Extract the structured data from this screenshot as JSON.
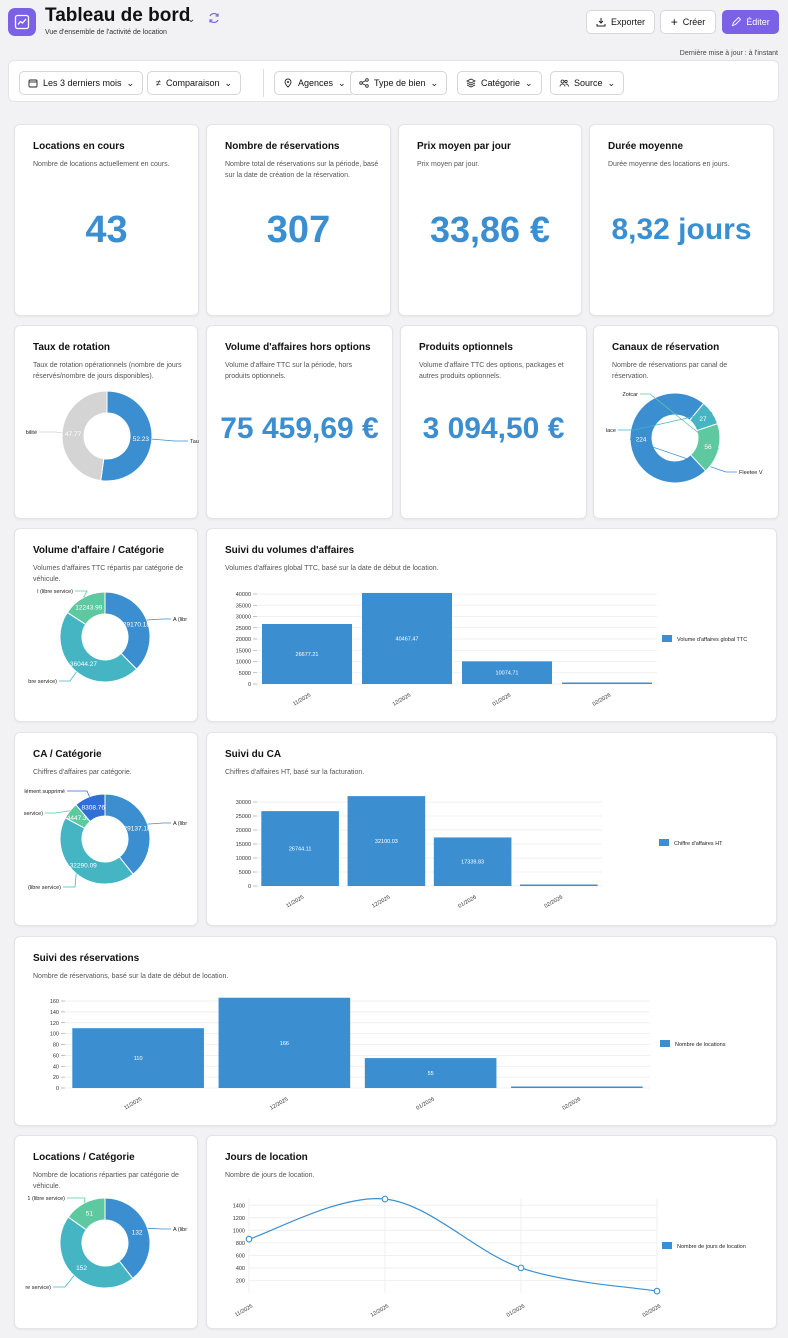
{
  "header": {
    "title": "Tableau de bord",
    "subtitle": "Vue d'ensemble de l'activité de location",
    "export_label": "Exporter",
    "create_label": "Créer",
    "edit_label": "Éditer",
    "updated": "Dernière mise à jour : à l'instant"
  },
  "filters": {
    "period": "Les 3 derniers mois",
    "comparison": "Comparaison",
    "agencies": "Agences",
    "property_type": "Type de bien",
    "category": "Catégorie",
    "source": "Source"
  },
  "kpis": {
    "locations_en_cours": {
      "title": "Locations en cours",
      "desc": "Nombre de locations actuellement en cours.",
      "value": "43"
    },
    "nb_reservations": {
      "title": "Nombre de réservations",
      "desc": "Nombre total de réservations sur la période, basé sur la date de création de la réservation.",
      "value": "307"
    },
    "prix_moyen": {
      "title": "Prix moyen par jour",
      "desc": "Prix moyen par jour.",
      "value": "33,86 €"
    },
    "duree_moyenne": {
      "title": "Durée moyenne",
      "desc": "Durée moyenne des locations en jours.",
      "value": "8,32 jours"
    },
    "volume_hors_options": {
      "title": "Volume d'affaires hors options",
      "desc": "Volume d'affaire TTC sur la période, hors produits optionnels.",
      "value": "75 459,69 €"
    },
    "produits_optionnels": {
      "title": "Produits optionnels",
      "desc": "Volume d'affaire TTC des options, packages et autres produits optionnels.",
      "value": "3 094,50 €"
    }
  },
  "colors": {
    "blue": "#3b8fd0",
    "teal": "#45b5c4",
    "green": "#5ec8a0",
    "grey": "#d4d4d4",
    "darkblue": "#2f6fd6",
    "accent": "#7b61e5"
  },
  "donuts": {
    "rotation": {
      "title": "Taux de rotation",
      "desc": "Taux de rotation opérationnels (nombre de jours réservés/nombre de jours disponibles).",
      "values": [
        52.23,
        47.77
      ],
      "labels": [
        "52.23",
        "47.77"
      ],
      "names": [
        "Taux",
        "bilité"
      ],
      "colors": [
        "#3b8fd0",
        "#d4d4d4"
      ]
    },
    "canaux": {
      "title": "Canaux de réservation",
      "desc": "Nombre de réservations par canal de réservation.",
      "values": [
        224,
        27,
        56
      ],
      "labels": [
        "224",
        "27",
        "56"
      ],
      "names": [
        "Fleetee V",
        "lace",
        "Zotcar"
      ],
      "colors": [
        "#3b8fd0",
        "#45b5c4",
        "#5ec8a0"
      ]
    },
    "volume_categorie": {
      "title": "Volume d'affaire / Catégorie",
      "desc": "Volumes d'affaires TTC répartis par catégorie de véhicule.",
      "values": [
        29170.18,
        36044.27,
        12243.99
      ],
      "labels": [
        "29170.18",
        "36044.27",
        "12243.99"
      ],
      "names": [
        "A (libr",
        "bre service)",
        "l (libre service)"
      ],
      "colors": [
        "#3b8fd0",
        "#45b5c4",
        "#5ec8a0"
      ]
    },
    "ca_categorie": {
      "title": "CA / Catégorie",
      "desc": "Chiffres d'affaires par catégorie.",
      "values": [
        29137.18,
        32290.09,
        4447.31,
        8308.76
      ],
      "labels": [
        "29137.18",
        "32290.09",
        "4447.31",
        "8308.76"
      ],
      "names": [
        "A (libr",
        "(libre service)",
        "service)",
        "lément supprimé"
      ],
      "colors": [
        "#3b8fd0",
        "#45b5c4",
        "#5ec8a0",
        "#2f6fd6"
      ]
    },
    "locations_categorie": {
      "title": "Locations / Catégorie",
      "desc": "Nombre de locations réparties par catégorie de véhicule.",
      "values": [
        132,
        152,
        51
      ],
      "labels": [
        "132",
        "152",
        "51"
      ],
      "names": [
        "A (libr",
        "re service)",
        "1 (libre service)"
      ],
      "colors": [
        "#3b8fd0",
        "#45b5c4",
        "#5ec8a0"
      ]
    }
  },
  "chart_data": [
    {
      "type": "bar",
      "title": "Suivi du volumes d'affaires",
      "subtitle": "Volumes d'affaires global TTC, basé sur la date de début de location.",
      "categories": [
        "11/2025",
        "12/2025",
        "01/2026",
        "02/2026"
      ],
      "series": [
        {
          "name": "Volume d'affaires global TTC",
          "values": [
            26677.21,
            40467.47,
            10074.71,
            0
          ]
        }
      ],
      "value_labels": [
        "26677.21",
        "40467.47",
        "10074.71",
        ""
      ],
      "yticks": [
        "40000",
        "35000",
        "30000",
        "25000",
        "20000",
        "15000",
        "10000",
        "5000",
        "0"
      ],
      "ylim": [
        0,
        40000
      ]
    },
    {
      "type": "bar",
      "title": "Suivi du CA",
      "subtitle": "Chiffres d'affaires HT, basé sur la facturation.",
      "categories": [
        "11/2025",
        "12/2025",
        "01/2026",
        "02/2026"
      ],
      "series": [
        {
          "name": "Chiffre d'affaires HT",
          "values": [
            26744.11,
            32100.03,
            17339.83,
            0
          ]
        }
      ],
      "value_labels": [
        "26744.11",
        "32100.03",
        "17339.83",
        ""
      ],
      "yticks": [
        "30000",
        "25000",
        "20000",
        "15000",
        "10000",
        "5000",
        "0"
      ],
      "ylim": [
        0,
        32100
      ]
    },
    {
      "type": "bar",
      "title": "Suivi des réservations",
      "subtitle": "Nombre de réservations, basé sur la date de début de location.",
      "categories": [
        "11/2025",
        "12/2025",
        "01/2026",
        "02/2026"
      ],
      "series": [
        {
          "name": "Nombre de locations",
          "values": [
            110,
            166,
            55,
            0
          ]
        }
      ],
      "value_labels": [
        "110",
        "166",
        "55",
        ""
      ],
      "yticks": [
        "160",
        "140",
        "120",
        "100",
        "80",
        "60",
        "40",
        "20",
        "0"
      ],
      "ylim": [
        0,
        166
      ]
    },
    {
      "type": "line",
      "title": "Jours de location",
      "subtitle": "Nombre de jours de location.",
      "categories": [
        "11/2025",
        "12/2025",
        "01/2026",
        "02/2026"
      ],
      "series": [
        {
          "name": "Nombre de jours de location",
          "values": [
            860,
            1500,
            400,
            30
          ]
        }
      ],
      "yticks": [
        "1400",
        "1200",
        "1000",
        "800",
        "600",
        "400",
        "200"
      ],
      "ylim": [
        0,
        1500
      ]
    }
  ]
}
